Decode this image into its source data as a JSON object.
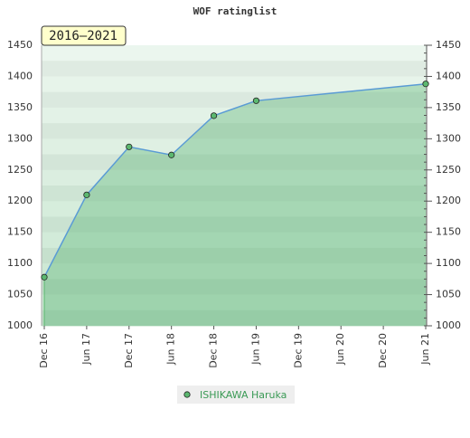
{
  "chart_data": {
    "type": "line",
    "title": "WOF ratinglist",
    "annotation": "2016–2021",
    "xticks": [
      "Dec 16",
      "Jun 17",
      "Dec 17",
      "Jun 18",
      "Dec 18",
      "Jun 19",
      "Dec 19",
      "Jun 20",
      "Dec 20",
      "Jun 21"
    ],
    "x": [
      "Dec 16",
      "Jun 17",
      "Dec 17",
      "Jun 18",
      "Dec 18",
      "Jun 19",
      "Jun 21"
    ],
    "series": [
      {
        "name": "ISHIKAWA Haruka",
        "color": "#5a9bd5",
        "marker_color": "#5cb870",
        "values": [
          1078,
          1210,
          1287,
          1274,
          1337,
          1361,
          1388
        ]
      }
    ],
    "ylim": [
      1000,
      1450
    ],
    "yticks": [
      1000,
      1050,
      1100,
      1150,
      1200,
      1250,
      1300,
      1350,
      1400,
      1450
    ],
    "legend": "bottom"
  }
}
